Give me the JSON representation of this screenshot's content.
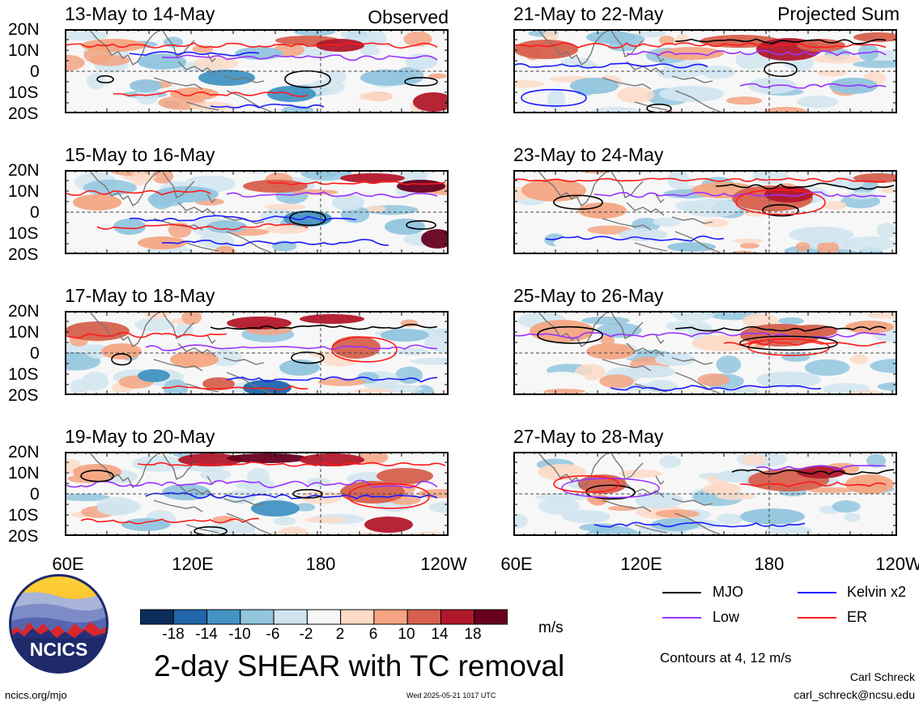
{
  "panels": [
    {
      "title": "13-May to 14-May",
      "tag": "Observed"
    },
    {
      "title": "15-May to 16-May",
      "tag": ""
    },
    {
      "title": "17-May to 18-May",
      "tag": ""
    },
    {
      "title": "19-May to 20-May",
      "tag": ""
    },
    {
      "title": "21-May to 22-May",
      "tag": "Projected Sum"
    },
    {
      "title": "23-May to 24-May",
      "tag": ""
    },
    {
      "title": "25-May to 26-May",
      "tag": ""
    },
    {
      "title": "27-May to 28-May",
      "tag": ""
    }
  ],
  "lat_labels": [
    "20N",
    "10N",
    "0",
    "10S",
    "20S"
  ],
  "lon_labels": [
    "60E",
    "120E",
    "180",
    "120W"
  ],
  "colorbar": {
    "ticks": [
      "-18",
      "-14",
      "-10",
      "-6",
      "-2",
      "2",
      "6",
      "10",
      "14",
      "18"
    ],
    "colors": [
      "#0b2d5c",
      "#2166ac",
      "#4393c3",
      "#92c5de",
      "#d1e5f0",
      "#f7f7f7",
      "#fddbc7",
      "#f4a582",
      "#d6604d",
      "#b2182b",
      "#67001f"
    ],
    "units": "m/s"
  },
  "title": "2-day SHEAR with TC removal",
  "legend": [
    {
      "label": "MJO",
      "color": "#000000"
    },
    {
      "label": "Kelvin x2",
      "color": "#1a1aff"
    },
    {
      "label": "Low",
      "color": "#9933ff"
    },
    {
      "label": "ER",
      "color": "#ff1a1a"
    }
  ],
  "contour_note": "Contours at 4, 12 m/s",
  "author": "Carl Schreck",
  "email": "carl_schreck@ncsu.edu",
  "site": "ncics.org/mjo",
  "timestamp": "Wed 2025-05-21 1017 UTC",
  "logo_text": "NCICS"
}
